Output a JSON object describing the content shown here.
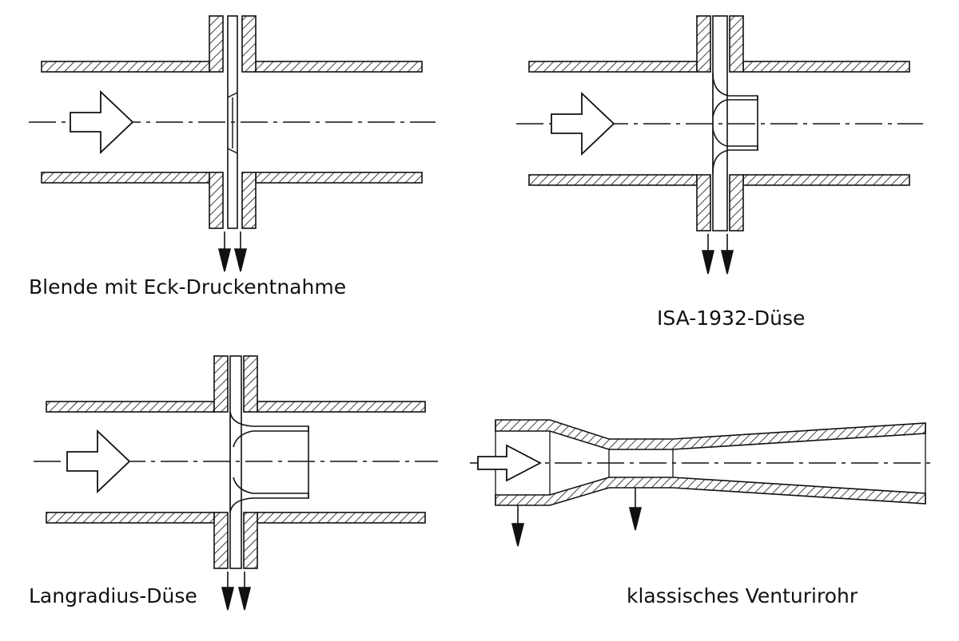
{
  "figure": {
    "panels": [
      {
        "id": "orifice",
        "caption": "Blende mit Eck-Druckentnahme"
      },
      {
        "id": "isa",
        "caption": "ISA-1932-Düse"
      },
      {
        "id": "longradius",
        "caption": "Langradius-Düse"
      },
      {
        "id": "venturi",
        "caption": "klassisches Venturirohr"
      }
    ]
  },
  "colors": {
    "ink": "#111111",
    "background": "#ffffff"
  }
}
